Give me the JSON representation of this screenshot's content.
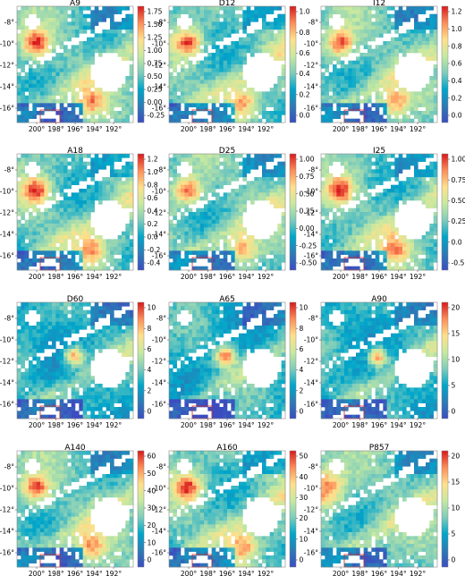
{
  "chart_data": {
    "type": "heatmap",
    "layout": "4x3 grid",
    "colormap": [
      "#3b4cc0",
      "#2c7bb6",
      "#00a6ca",
      "#7fcdbb",
      "#c7e9a0",
      "#fee08b",
      "#fc8d59",
      "#d7191c"
    ],
    "x_ticks": [
      "200°",
      "198°",
      "196°",
      "194°",
      "192°"
    ],
    "y_ticks": [
      "-8°",
      "-10°",
      "-12°",
      "-14°",
      "-16°"
    ],
    "panels": [
      {
        "title": "A9",
        "colorbar_ticks": [
          "-0.25",
          "0.00",
          "0.25",
          "0.50",
          "0.75",
          "1.00",
          "1.25",
          "1.50",
          "1.75"
        ],
        "hotspot": "east-ridge"
      },
      {
        "title": "D12",
        "colorbar_ticks": [
          "0.0",
          "0.2",
          "0.4",
          "0.6",
          "0.8",
          "1.0"
        ],
        "hotspot": "east-ridge"
      },
      {
        "title": "I12",
        "colorbar_ticks": [
          "0.0",
          "0.2",
          "0.4",
          "0.6",
          "0.8",
          "1.0",
          "1.2"
        ],
        "hotspot": "east-ridge"
      },
      {
        "title": "A18",
        "colorbar_ticks": [
          "-0.4",
          "-0.2",
          "0.0",
          "0.2",
          "0.4",
          "0.6",
          "0.8",
          "1.0",
          "1.2"
        ],
        "hotspot": "east-ridge"
      },
      {
        "title": "D25",
        "colorbar_ticks": [
          "-0.50",
          "-0.25",
          "0.00",
          "0.25",
          "0.50",
          "0.75",
          "1.00"
        ],
        "hotspot": "east-ridge"
      },
      {
        "title": "I25",
        "colorbar_ticks": [
          "-0.5",
          "0.0",
          "0.25",
          "0.50",
          "0.75",
          "1.00"
        ],
        "hotspot": "east-ridge"
      },
      {
        "title": "D60",
        "colorbar_ticks": [
          "0",
          "2",
          "4",
          "6",
          "8",
          "10"
        ],
        "hotspot": "center"
      },
      {
        "title": "A65",
        "colorbar_ticks": [
          "0",
          "2",
          "4",
          "6",
          "8",
          "10"
        ],
        "hotspot": "center"
      },
      {
        "title": "A90",
        "colorbar_ticks": [
          "0",
          "5",
          "10",
          "15",
          "20"
        ],
        "hotspot": "center"
      },
      {
        "title": "A140",
        "colorbar_ticks": [
          "0",
          "10",
          "20",
          "30",
          "40",
          "50",
          "60"
        ],
        "hotspot": "east-ridge"
      },
      {
        "title": "A160",
        "colorbar_ticks": [
          "0",
          "10",
          "20",
          "30",
          "40",
          "50"
        ],
        "hotspot": "east-ridge"
      },
      {
        "title": "P857",
        "colorbar_ticks": [
          "0",
          "5",
          "10",
          "15",
          "20"
        ],
        "hotspot": "west"
      }
    ]
  }
}
